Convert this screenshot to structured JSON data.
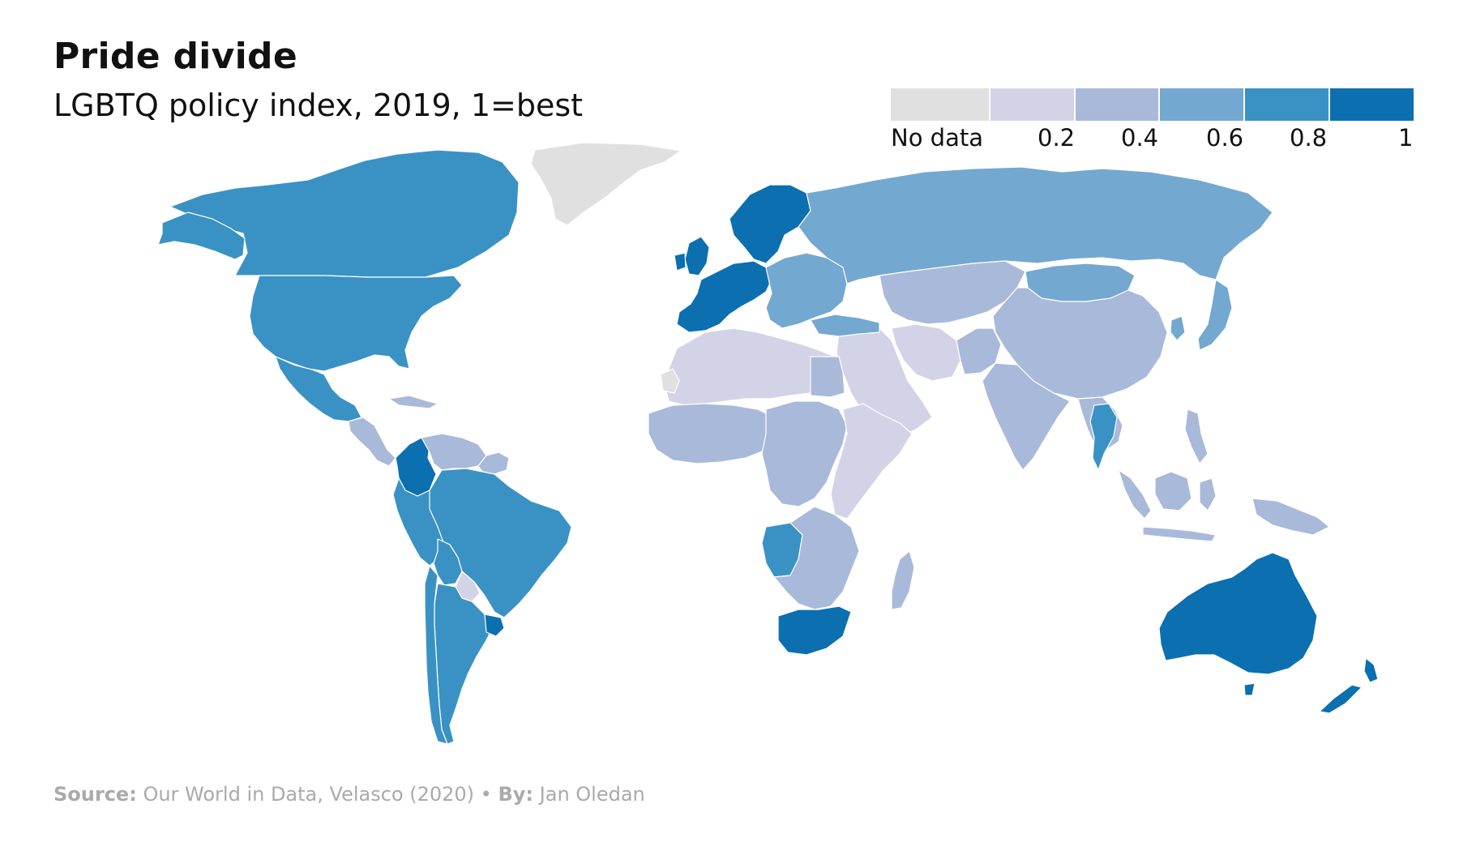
{
  "header": {
    "title": "Pride divide",
    "subtitle": "LGBTQ policy index, 2019, 1=best"
  },
  "legend": {
    "no_data_label": "No data",
    "tick_labels": [
      "0.2",
      "0.4",
      "0.6",
      "0.8",
      "1"
    ],
    "bins": [
      {
        "label": "No data",
        "color": "#e0e0e0"
      },
      {
        "label": "0–0.2",
        "color": "#d3d3e8"
      },
      {
        "label": "0.2–0.4",
        "color": "#a9b9da"
      },
      {
        "label": "0.4–0.6",
        "color": "#73a8d0"
      },
      {
        "label": "0.6–0.8",
        "color": "#3a92c4"
      },
      {
        "label": "0.8–1",
        "color": "#0b6fb0"
      }
    ]
  },
  "map": {
    "type": "choropleth",
    "colors": {
      "no_data": "#e0e0e0",
      "bin1": "#d3d3e8",
      "bin2": "#a9b9da",
      "bin3": "#73a8d0",
      "bin4": "#3a92c4",
      "bin5": "#0b6fb0",
      "border": "#ffffff"
    },
    "regions": [
      {
        "name": "Greenland",
        "bin": "no_data"
      },
      {
        "name": "Canada",
        "bin": "bin4"
      },
      {
        "name": "United States",
        "bin": "bin4"
      },
      {
        "name": "Mexico",
        "bin": "bin4"
      },
      {
        "name": "Central America",
        "bin": "bin2"
      },
      {
        "name": "Colombia",
        "bin": "bin5"
      },
      {
        "name": "Venezuela",
        "bin": "bin2"
      },
      {
        "name": "Brazil",
        "bin": "bin4"
      },
      {
        "name": "Peru",
        "bin": "bin4"
      },
      {
        "name": "Bolivia",
        "bin": "bin4"
      },
      {
        "name": "Paraguay",
        "bin": "bin1"
      },
      {
        "name": "Argentina",
        "bin": "bin4"
      },
      {
        "name": "Chile",
        "bin": "bin4"
      },
      {
        "name": "Uruguay",
        "bin": "bin5"
      },
      {
        "name": "Western Europe",
        "bin": "bin5"
      },
      {
        "name": "Scandinavia",
        "bin": "bin5"
      },
      {
        "name": "Eastern Europe",
        "bin": "bin3"
      },
      {
        "name": "Russia",
        "bin": "bin3"
      },
      {
        "name": "Kazakhstan & Central Asia",
        "bin": "bin2"
      },
      {
        "name": "Mongolia",
        "bin": "bin3"
      },
      {
        "name": "China",
        "bin": "bin2"
      },
      {
        "name": "Japan & Korea",
        "bin": "bin3"
      },
      {
        "name": "Middle East",
        "bin": "bin1"
      },
      {
        "name": "Iran",
        "bin": "bin1"
      },
      {
        "name": "India",
        "bin": "bin2"
      },
      {
        "name": "Thailand",
        "bin": "bin4"
      },
      {
        "name": "Southeast Asia",
        "bin": "bin2"
      },
      {
        "name": "North Africa",
        "bin": "bin1"
      },
      {
        "name": "Western Sahara",
        "bin": "no_data"
      },
      {
        "name": "West Africa",
        "bin": "bin2"
      },
      {
        "name": "Central Africa",
        "bin": "bin2"
      },
      {
        "name": "East Africa",
        "bin": "bin1"
      },
      {
        "name": "Angola",
        "bin": "bin4"
      },
      {
        "name": "Southern Africa",
        "bin": "bin2"
      },
      {
        "name": "South Africa",
        "bin": "bin5"
      },
      {
        "name": "Madagascar",
        "bin": "bin2"
      },
      {
        "name": "Indonesia",
        "bin": "bin2"
      },
      {
        "name": "Papua New Guinea",
        "bin": "bin2"
      },
      {
        "name": "Australia",
        "bin": "bin5"
      },
      {
        "name": "New Zealand",
        "bin": "bin5"
      }
    ]
  },
  "footer": {
    "source_label": "Source:",
    "source_text": "Our World in Data, Velasco (2020)",
    "separator": "•",
    "by_label": "By:",
    "by_text": "Jan Oledan"
  }
}
